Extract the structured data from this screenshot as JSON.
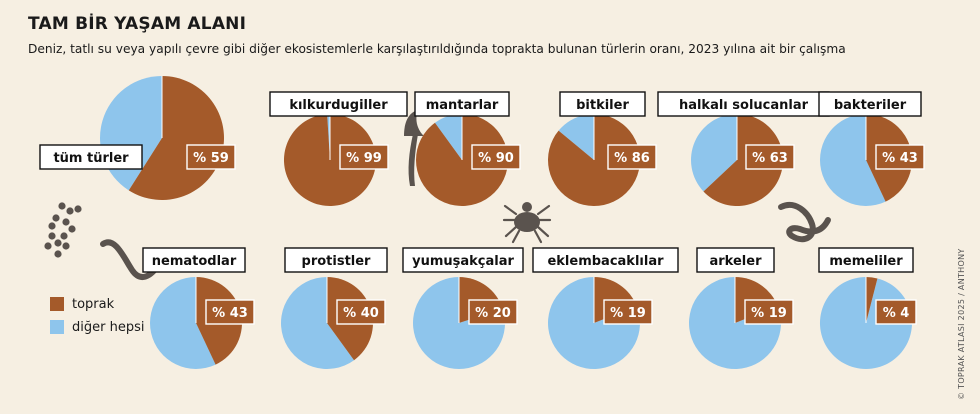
{
  "title": "TAM BİR YAŞAM ALANI",
  "subtitle": "Deniz, tatlı su veya yapılı çevre gibi diğer ekosistemlerle karşılaştırıldığında toprakta bulunan türlerin oranı, 2023 yılına ait bir çalışma",
  "credit": "© TOPRAK ATLASI 2025 / ANTHONY",
  "colors": {
    "soil": "#a45a2a",
    "other": "#8ec5ec",
    "background": "#f6efe2"
  },
  "legend": [
    {
      "label": "toprak",
      "color": "#a45a2a"
    },
    {
      "label": "diğer hepsi",
      "color": "#8ec5ec"
    }
  ],
  "icons": [
    "mushroom-icon",
    "tick-icon",
    "nematode-icon",
    "earthworm-icon",
    "bacteria-cluster-icon"
  ],
  "chart_data": {
    "type": "pie",
    "series": [
      {
        "name": "toprak"
      },
      {
        "name": "diğer hepsi"
      }
    ],
    "categories": [
      "tüm türler",
      "kılkurdugiller",
      "mantarlar",
      "bitkiler",
      "halkalı solucanlar",
      "bakteriler",
      "nematodlar",
      "protistler",
      "yumuşakçalar",
      "eklembacaklılar",
      "arkeler",
      "memeliler"
    ],
    "values": [
      59,
      99,
      90,
      86,
      63,
      43,
      43,
      40,
      20,
      19,
      19,
      4
    ],
    "value_labels": [
      "% 59",
      "% 99",
      "% 90",
      "% 86",
      "% 63",
      "% 43",
      "% 43",
      "% 40",
      "% 20",
      "% 19",
      "% 19",
      "% 4"
    ],
    "unit": "%"
  }
}
